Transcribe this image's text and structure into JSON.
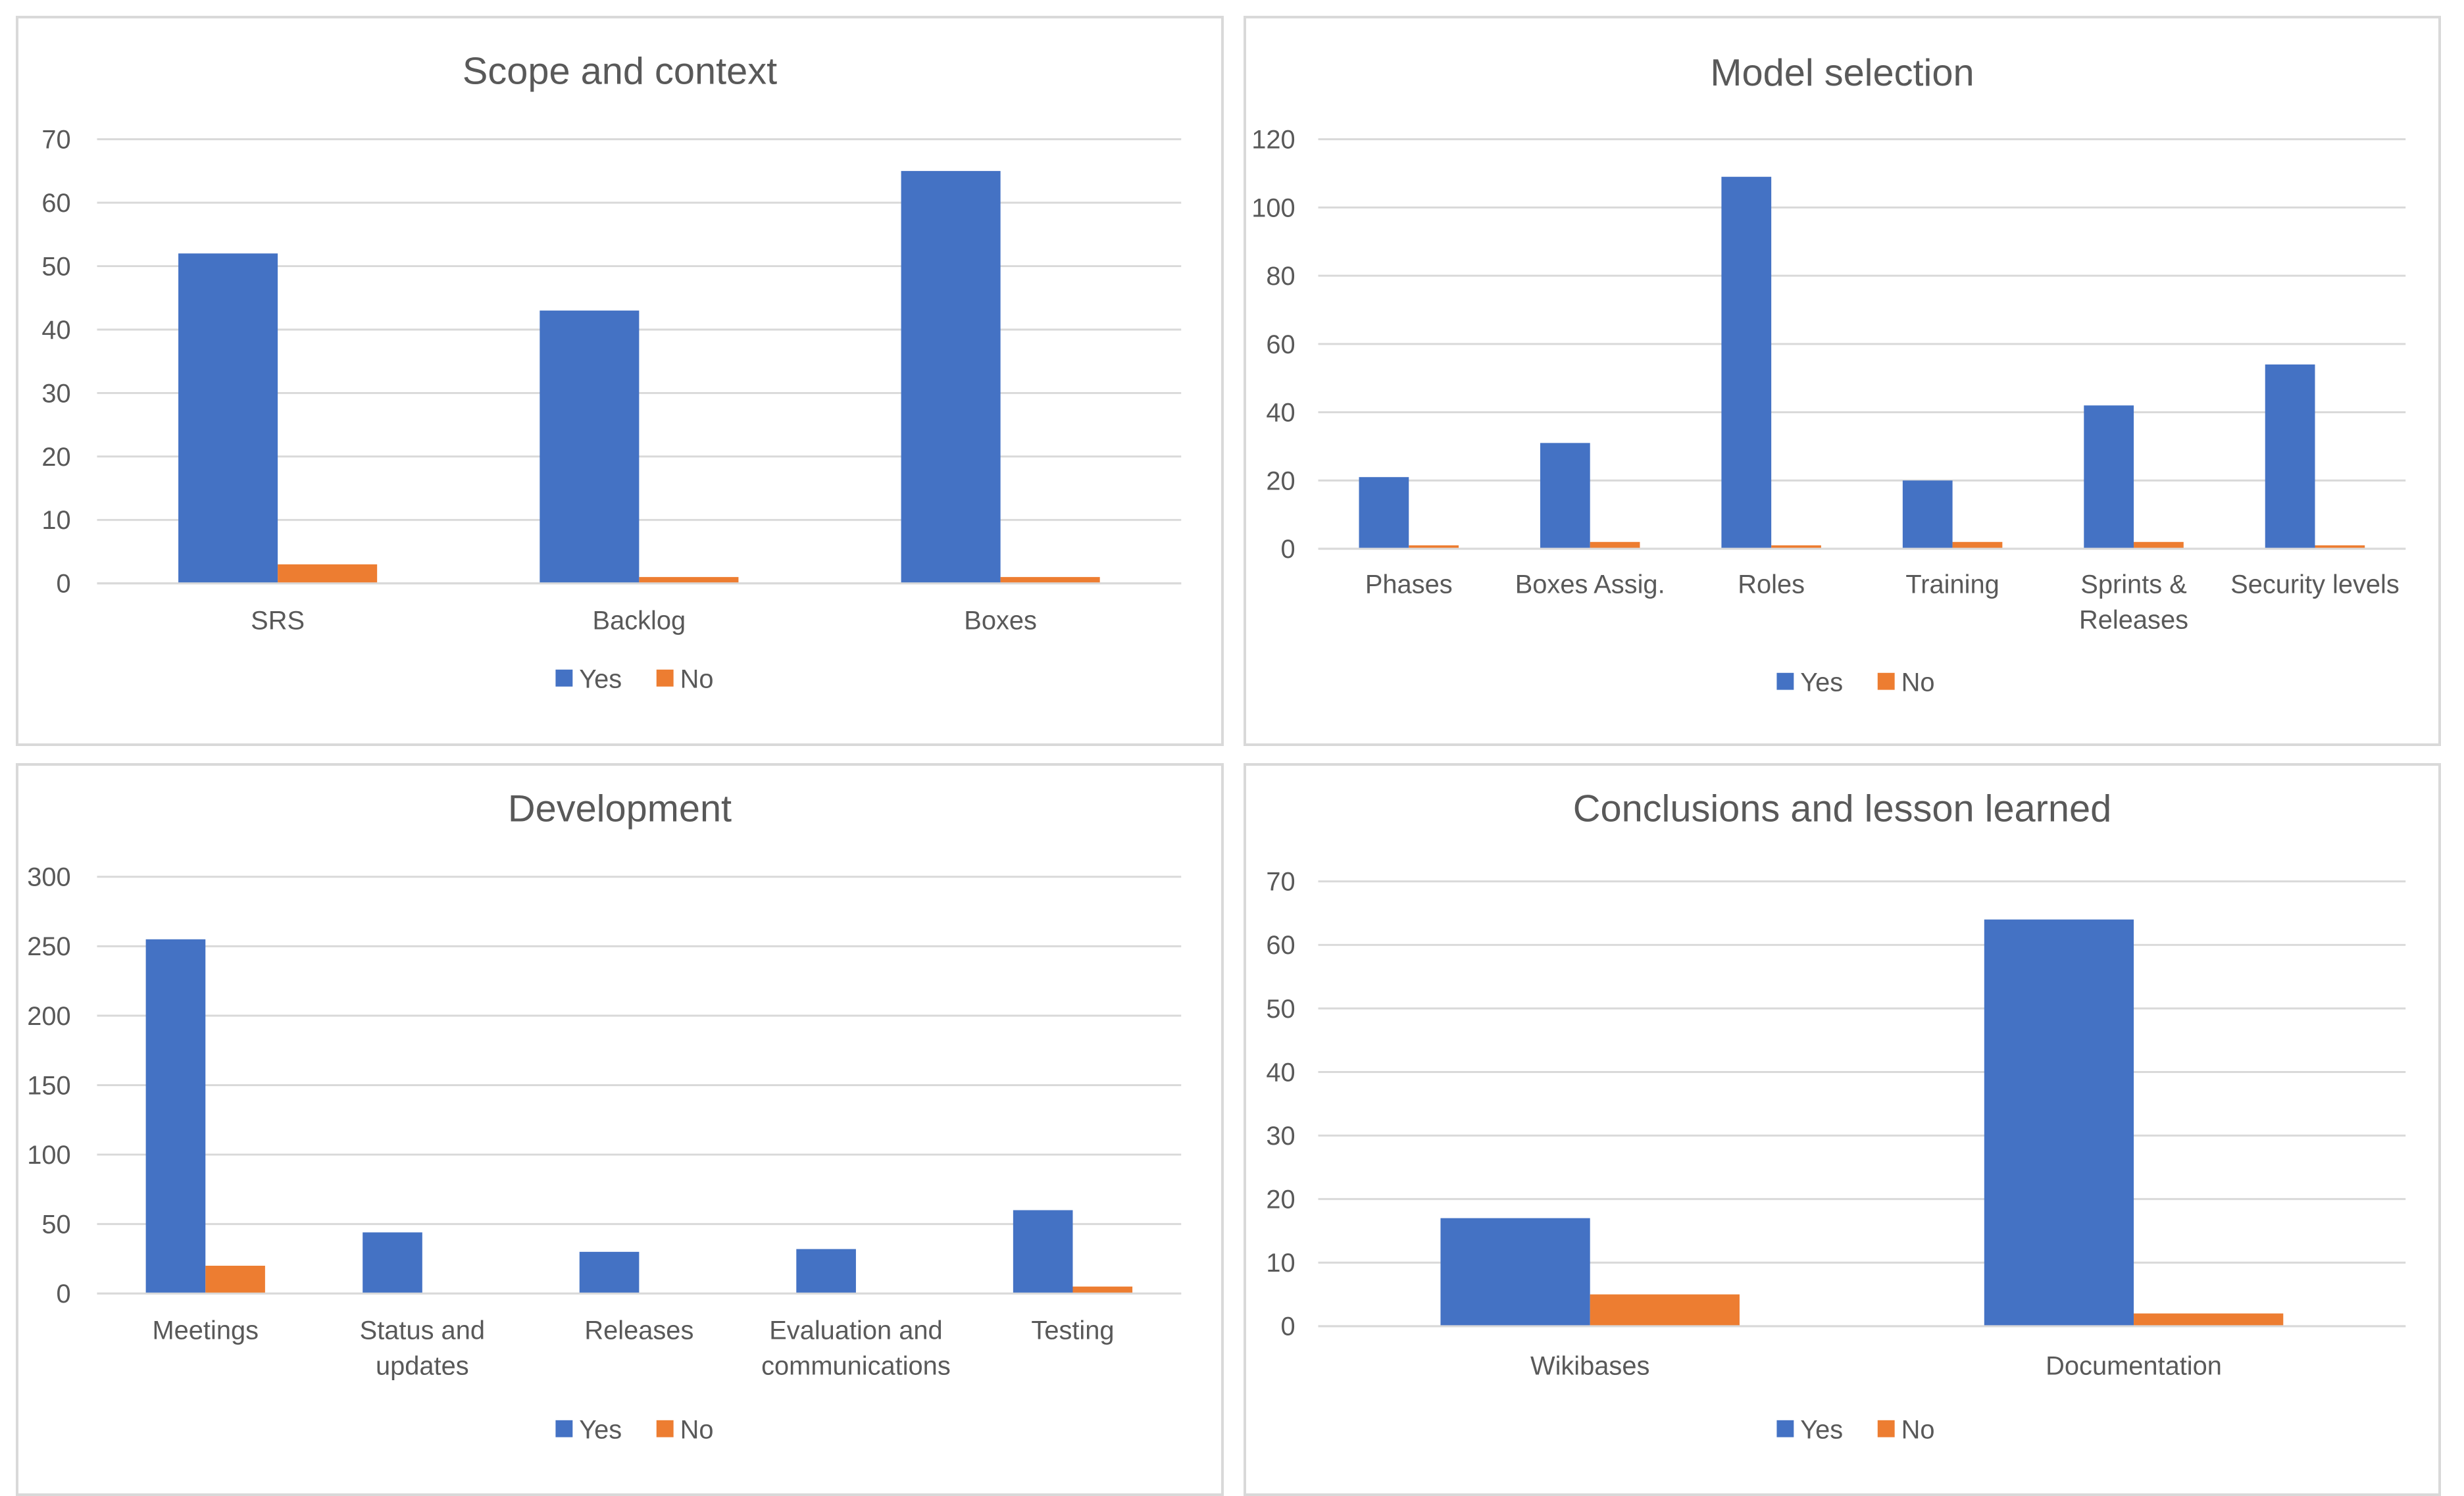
{
  "colors": {
    "yes": "#4472c4",
    "no": "#ed7d31",
    "grid": "#d9d9d9",
    "text": "#595959"
  },
  "chart_data": [
    {
      "type": "bar",
      "title": "Scope and context",
      "categories": [
        [
          "SRS"
        ],
        [
          "Backlog"
        ],
        [
          "Boxes"
        ]
      ],
      "series": [
        {
          "name": "Yes",
          "values": [
            52,
            43,
            65
          ]
        },
        {
          "name": "No",
          "values": [
            3,
            1,
            1
          ]
        }
      ],
      "ylim": [
        0,
        70
      ],
      "yticks": [
        0,
        10,
        20,
        30,
        40,
        50,
        60,
        70
      ],
      "grid": true,
      "legend": "bottom"
    },
    {
      "type": "bar",
      "title": "Model selection",
      "categories": [
        [
          "Phases"
        ],
        [
          "Boxes Assig."
        ],
        [
          "Roles"
        ],
        [
          "Training"
        ],
        [
          "Sprints &",
          "Releases"
        ],
        [
          "Security levels"
        ]
      ],
      "series": [
        {
          "name": "Yes",
          "values": [
            21,
            31,
            109,
            20,
            42,
            54
          ]
        },
        {
          "name": "No",
          "values": [
            1,
            2,
            1,
            2,
            2,
            1
          ]
        }
      ],
      "ylim": [
        0,
        120
      ],
      "yticks": [
        0,
        20,
        40,
        60,
        80,
        100,
        120
      ],
      "grid": true,
      "legend": "bottom"
    },
    {
      "type": "bar",
      "title": "Development",
      "categories": [
        [
          "Meetings"
        ],
        [
          "Status and",
          "updates"
        ],
        [
          "Releases"
        ],
        [
          "Evaluation and",
          "communications"
        ],
        [
          "Testing"
        ]
      ],
      "series": [
        {
          "name": "Yes",
          "values": [
            255,
            44,
            30,
            32,
            60
          ]
        },
        {
          "name": "No",
          "values": [
            20,
            0,
            0,
            0,
            5
          ]
        }
      ],
      "ylim": [
        0,
        300
      ],
      "yticks": [
        0,
        50,
        100,
        150,
        200,
        250,
        300
      ],
      "grid": true,
      "legend": "bottom"
    },
    {
      "type": "bar",
      "title": "Conclusions and lesson learned",
      "categories": [
        [
          "Wikibases"
        ],
        [
          "Documentation"
        ]
      ],
      "series": [
        {
          "name": "Yes",
          "values": [
            17,
            64
          ]
        },
        {
          "name": "No",
          "values": [
            5,
            2
          ]
        }
      ],
      "ylim": [
        0,
        70
      ],
      "yticks": [
        0,
        10,
        20,
        30,
        40,
        50,
        60,
        70
      ],
      "grid": true,
      "legend": "bottom"
    }
  ]
}
